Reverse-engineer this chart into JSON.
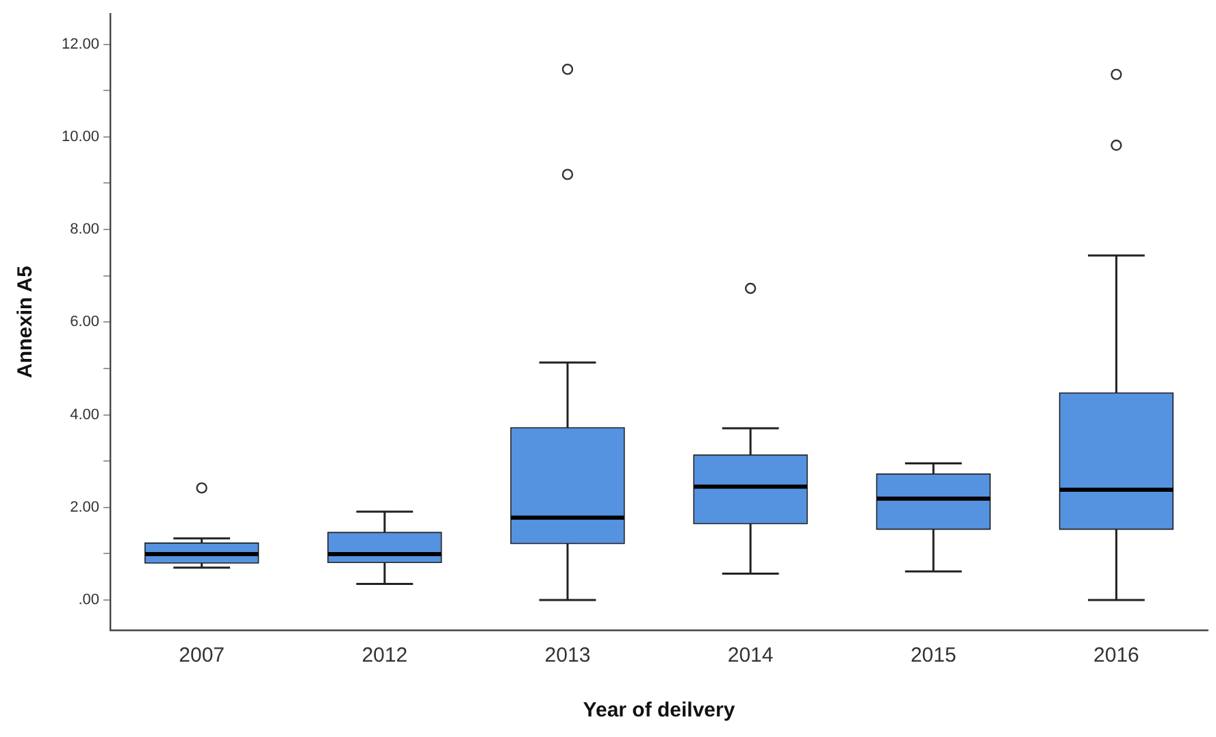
{
  "chart_data": {
    "type": "box",
    "xlabel": "Year of deilvery",
    "ylabel": "Annexin A5",
    "categories": [
      "2007",
      "2012",
      "2013",
      "2014",
      "2015",
      "2016"
    ],
    "color": "#5593e0",
    "grid": false,
    "ylim": [
      -0.65,
      12.66
    ],
    "yticks": [
      {
        "value": 0,
        "label": ".00"
      },
      {
        "value": 1,
        "label": null
      },
      {
        "value": 2,
        "label": "2.00"
      },
      {
        "value": 3,
        "label": null
      },
      {
        "value": 4,
        "label": "4.00"
      },
      {
        "value": 5,
        "label": null
      },
      {
        "value": 6,
        "label": "6.00"
      },
      {
        "value": 7,
        "label": null
      },
      {
        "value": 8,
        "label": "8.00"
      },
      {
        "value": 9,
        "label": null
      },
      {
        "value": 10,
        "label": "10.00"
      },
      {
        "value": 11,
        "label": null
      },
      {
        "value": 12,
        "label": "12.00"
      }
    ],
    "boxes": [
      {
        "low": 0.7,
        "q1": 0.8,
        "median": 0.99,
        "q3": 1.23,
        "high": 1.33,
        "outliers": [
          2.42
        ]
      },
      {
        "low": 0.35,
        "q1": 0.81,
        "median": 0.99,
        "q3": 1.46,
        "high": 1.91
      },
      {
        "low": 0.0,
        "q1": 1.22,
        "median": 1.78,
        "q3": 3.72,
        "high": 5.13,
        "outliers": [
          9.19,
          11.46
        ]
      },
      {
        "low": 0.57,
        "q1": 1.65,
        "median": 2.45,
        "q3": 3.13,
        "high": 3.71,
        "outliers": [
          6.73
        ]
      },
      {
        "low": 0.62,
        "q1": 1.53,
        "median": 2.19,
        "q3": 2.72,
        "high": 2.95
      },
      {
        "low": 0.0,
        "q1": 1.53,
        "median": 2.38,
        "q3": 4.47,
        "high": 7.44,
        "outliers": [
          9.82,
          11.35
        ]
      }
    ]
  }
}
